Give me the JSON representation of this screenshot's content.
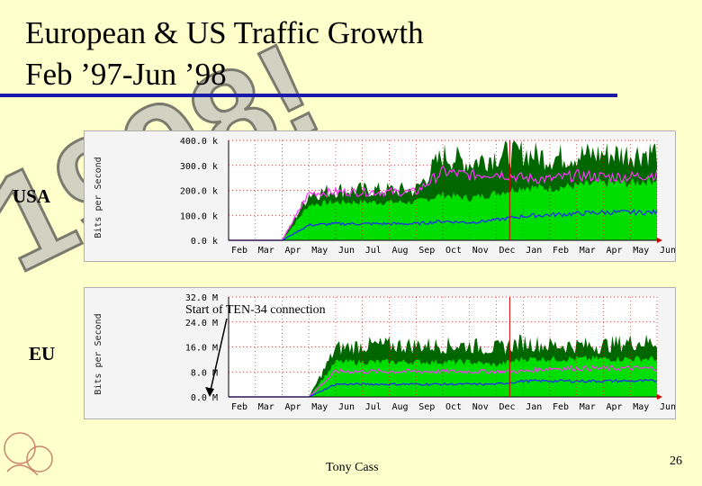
{
  "slide": {
    "title_line1": "European & US Traffic Growth",
    "title_line2": "Feb ’97-Jun ’98",
    "watermark": "1998!",
    "presenter": "Tony Cass",
    "page_number": "26",
    "colors": {
      "background": "#ffffcc",
      "rule": "#1a1aaa"
    }
  },
  "chart_data": [
    {
      "type": "area",
      "region_label": "USA",
      "ylabel": "Bits per Second",
      "categories": [
        "Feb",
        "Mar",
        "Apr",
        "May",
        "Jun",
        "Jul",
        "Aug",
        "Sep",
        "Oct",
        "Nov",
        "Dec",
        "Jan",
        "Feb",
        "Mar",
        "Apr",
        "May",
        "Jun"
      ],
      "ytick_labels": [
        "0.0 k",
        "100.0 k",
        "200.0 k",
        "300.0 k",
        "400.0 k"
      ],
      "ylim": [
        0,
        400
      ],
      "unit": "kbit/s",
      "series": [
        {
          "color": "#00dd00",
          "values": [
            0,
            0,
            0,
            140,
            150,
            150,
            150,
            150,
            180,
            165,
            185,
            210,
            205,
            215,
            225,
            225,
            240
          ]
        },
        {
          "color": "#006600",
          "values": [
            0,
            0,
            0,
            180,
            195,
            195,
            195,
            195,
            330,
            300,
            330,
            340,
            320,
            330,
            335,
            335,
            345
          ]
        },
        {
          "color": "#ff33ff",
          "values": [
            0,
            0,
            0,
            185,
            190,
            190,
            190,
            190,
            270,
            255,
            265,
            245,
            240,
            255,
            250,
            250,
            260
          ]
        },
        {
          "color": "#2222ff",
          "values": [
            0,
            0,
            0,
            60,
            65,
            65,
            65,
            65,
            75,
            70,
            80,
            95,
            100,
            105,
            110,
            110,
            110
          ]
        }
      ]
    },
    {
      "type": "area",
      "region_label": "EU",
      "ylabel": "Bits per Second",
      "categories": [
        "Feb",
        "Mar",
        "Apr",
        "May",
        "Jun",
        "Jul",
        "Aug",
        "Sep",
        "Oct",
        "Nov",
        "Dec",
        "Jan",
        "Feb",
        "Mar",
        "Apr",
        "May",
        "Jun"
      ],
      "ytick_labels": [
        "0.0 M",
        "8.0 M",
        "16.0 M",
        "24.0 M",
        "32.0 M"
      ],
      "ylim": [
        0,
        32
      ],
      "unit": "Mbit/s",
      "annotation": "Start of TEN-34 connection",
      "series": [
        {
          "color": "#00dd00",
          "values": [
            0,
            0,
            0,
            0,
            11,
            11,
            11,
            11,
            11,
            11,
            10,
            12,
            12,
            12,
            12,
            12,
            12
          ]
        },
        {
          "color": "#006600",
          "values": [
            0,
            0,
            0,
            0,
            15,
            16,
            16,
            16,
            16,
            16,
            15,
            17,
            16,
            16,
            16,
            17,
            17
          ]
        },
        {
          "color": "#ff33ff",
          "values": [
            0,
            0,
            0,
            0,
            8,
            8,
            8,
            8,
            8,
            8,
            8,
            8,
            9,
            9,
            9,
            9,
            9
          ]
        },
        {
          "color": "#2222ff",
          "values": [
            0,
            0,
            0,
            0,
            4,
            4,
            4,
            4,
            4,
            4,
            4,
            5,
            5,
            5,
            5,
            5,
            5
          ]
        }
      ]
    }
  ]
}
